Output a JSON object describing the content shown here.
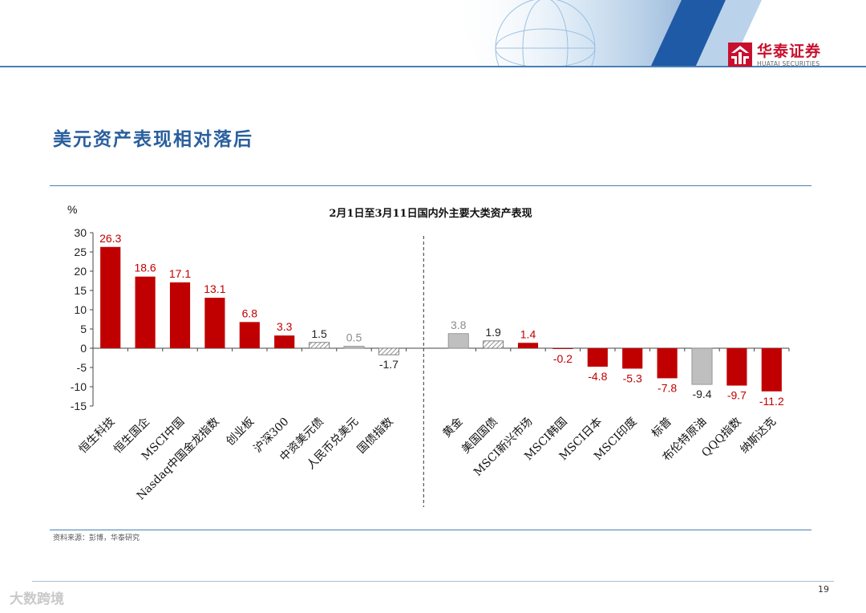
{
  "brand": {
    "name_cn": "华泰证券",
    "name_en": "HUATAI SECURITIES",
    "color": "#c8102e"
  },
  "page_title": "美元资产表现相对落后",
  "source": "资料来源：彭博，华泰研究",
  "page_number": "19",
  "watermark": "大数跨境",
  "colors": {
    "up": "#c00000",
    "neutral": "#bfbfbf",
    "label_red": "#c00000",
    "label_gray": "#8c8c8c",
    "label_black": "#222222",
    "title_blue": "#2a5f9e"
  },
  "chart_data": {
    "type": "bar",
    "title": "2月1日至3月11日国内外主要大类资产表现",
    "ylabel": "%",
    "ylim": [
      -15,
      30
    ],
    "yticks": [
      30,
      25,
      20,
      15,
      10,
      5,
      0,
      -5,
      -10,
      -15
    ],
    "groups_divider_after": 9,
    "bars": [
      {
        "category": "恒生科技",
        "value": 26.3,
        "label": "26.3",
        "style": "red"
      },
      {
        "category": "恒生国企",
        "value": 18.6,
        "label": "18.6",
        "style": "red"
      },
      {
        "category": "MSCI中国",
        "value": 17.1,
        "label": "17.1",
        "style": "red"
      },
      {
        "category": "Nasdaq中国金龙指数",
        "value": 13.1,
        "label": "13.1",
        "style": "red"
      },
      {
        "category": "创业板",
        "value": 6.8,
        "label": "6.8",
        "style": "red"
      },
      {
        "category": "沪深300",
        "value": 3.3,
        "label": "3.3",
        "style": "red"
      },
      {
        "category": "中资美元债",
        "value": 1.5,
        "label": "1.5",
        "style": "hatch"
      },
      {
        "category": "人民币兑美元",
        "value": 0.5,
        "label": "0.5",
        "style": "gray"
      },
      {
        "category": "国债指数",
        "value": -1.7,
        "label": "-1.7",
        "style": "hatch"
      },
      {
        "category": "",
        "value": null,
        "label": "",
        "style": "gap"
      },
      {
        "category": "黄金",
        "value": 3.8,
        "label": "3.8",
        "style": "gray"
      },
      {
        "category": "美国国债",
        "value": 1.9,
        "label": "1.9",
        "style": "hatch"
      },
      {
        "category": "MSCI新兴市场",
        "value": 1.4,
        "label": "1.4",
        "style": "red"
      },
      {
        "category": "MSCI韩国",
        "value": -0.2,
        "label": "-0.2",
        "style": "red"
      },
      {
        "category": "MSCI日本",
        "value": -4.8,
        "label": "-4.8",
        "style": "red"
      },
      {
        "category": "MSCI印度",
        "value": -5.3,
        "label": "-5.3",
        "style": "red"
      },
      {
        "category": "标普",
        "value": -7.8,
        "label": "-7.8",
        "style": "red"
      },
      {
        "category": "布伦特原油",
        "value": -9.4,
        "label": "-9.4",
        "style": "gray"
      },
      {
        "category": "QQQ指数",
        "value": -9.7,
        "label": "-9.7",
        "style": "red"
      },
      {
        "category": "纳斯达克",
        "value": -11.2,
        "label": "-11.2",
        "style": "red"
      }
    ]
  }
}
